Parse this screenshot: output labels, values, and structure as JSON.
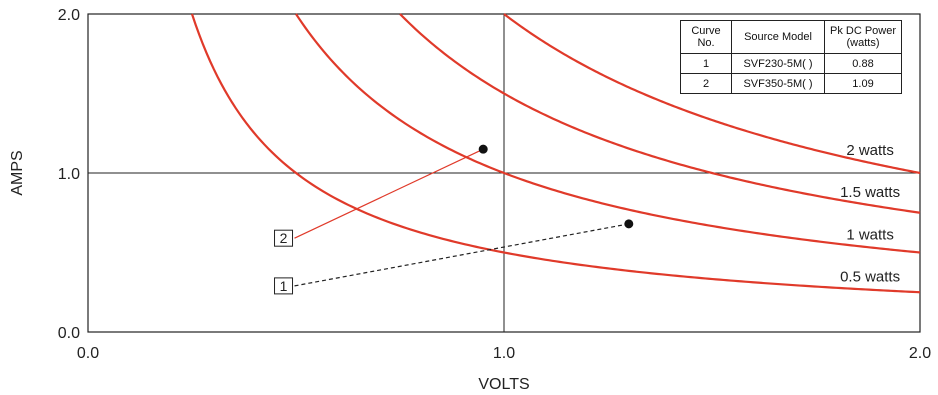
{
  "chart_data": {
    "type": "line",
    "title": "",
    "xlabel": "VOLTS",
    "ylabel": "AMPS",
    "xlim": [
      0,
      2.0
    ],
    "ylim": [
      0,
      2.0
    ],
    "x_ticks": [
      "0.0",
      "1.0",
      "2.0"
    ],
    "y_ticks": [
      "0.0",
      "1.0",
      "2.0"
    ],
    "reference_lines": {
      "x": 1.0,
      "y": 1.0
    },
    "series": [
      {
        "name": "0.5 watts",
        "power": 0.5
      },
      {
        "name": "1 watts",
        "power": 1.0
      },
      {
        "name": "1.5 watts",
        "power": 1.5
      },
      {
        "name": "2 watts",
        "power": 2.0
      }
    ],
    "curve_color": "#e03a2a",
    "points": [
      {
        "callout": "2",
        "x": 0.95,
        "y": 1.15,
        "line_style": "solid",
        "line_color": "#e03a2a",
        "callout_anchor": [
          0.47,
          0.59
        ]
      },
      {
        "callout": "1",
        "x": 1.3,
        "y": 0.68,
        "line_style": "dashed",
        "line_color": "#222222",
        "callout_anchor": [
          0.47,
          0.29
        ]
      }
    ],
    "legend": {
      "placement": "top-right",
      "headers": [
        "Curve No.",
        "Source Model",
        "Pk DC Power (watts)"
      ],
      "rows": [
        [
          "1",
          "SVF230-5M( )",
          "0.88"
        ],
        [
          "2",
          "SVF350-5M( )",
          "1.09"
        ]
      ]
    }
  }
}
